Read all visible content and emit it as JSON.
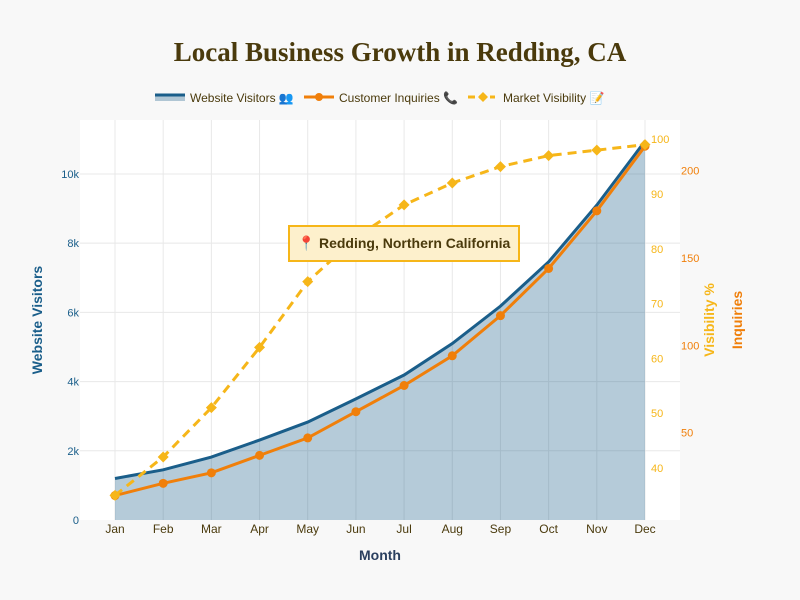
{
  "chart_data": {
    "type": "line",
    "title": "Local Business Growth in Redding, CA",
    "xlabel": "Month",
    "categories": [
      "Jan",
      "Feb",
      "Mar",
      "Apr",
      "May",
      "Jun",
      "Jul",
      "Aug",
      "Sep",
      "Oct",
      "Nov",
      "Dec"
    ],
    "series": [
      {
        "name": "Website Visitors 👥",
        "axis": "y",
        "style": "area-line",
        "color": "#1a5e8a",
        "values": [
          1200,
          1450,
          1820,
          2310,
          2830,
          3500,
          4190,
          5100,
          6180,
          7460,
          9100,
          10950
        ]
      },
      {
        "name": "Customer Inquiries 📞",
        "axis": "y3",
        "style": "line-markers",
        "color": "#f07f0a",
        "values": [
          14,
          21,
          27,
          37,
          47,
          62,
          77,
          94,
          117,
          144,
          177,
          214
        ]
      },
      {
        "name": "Market Visibility 📝",
        "axis": "y2",
        "style": "dashed-diamonds",
        "color": "#f6b619",
        "values": [
          35,
          42,
          51,
          62,
          74,
          82,
          88,
          92,
          95,
          97,
          98,
          99
        ]
      }
    ],
    "axes": {
      "y": {
        "label": "Website Visitors",
        "range": [
          0,
          11560
        ],
        "ticks": [
          0,
          2000,
          4000,
          6000,
          8000,
          10000
        ],
        "tick_labels": [
          "0",
          "2k",
          "4k",
          "6k",
          "8k",
          "10k"
        ],
        "color": "#1a5e8a"
      },
      "y2": {
        "label": "Visibility %",
        "range": [
          30.5,
          103.5
        ],
        "ticks": [
          40,
          50,
          60,
          70,
          80,
          90,
          100
        ],
        "tick_labels": [
          "40",
          "50",
          "60",
          "70",
          "80",
          "90",
          "100"
        ],
        "color": "#f6b619"
      },
      "y3": {
        "label": "Inquiries",
        "range": [
          0,
          229
        ],
        "ticks": [
          50,
          100,
          150,
          200
        ],
        "tick_labels": [
          "50",
          "100",
          "150",
          "200"
        ],
        "color": "#f07f0a"
      }
    },
    "annotation": {
      "icon": "📍",
      "text": "Redding, Northern California",
      "category": "Jul",
      "value_y2": 80
    },
    "legend_placement": "top-center",
    "grid": true
  }
}
